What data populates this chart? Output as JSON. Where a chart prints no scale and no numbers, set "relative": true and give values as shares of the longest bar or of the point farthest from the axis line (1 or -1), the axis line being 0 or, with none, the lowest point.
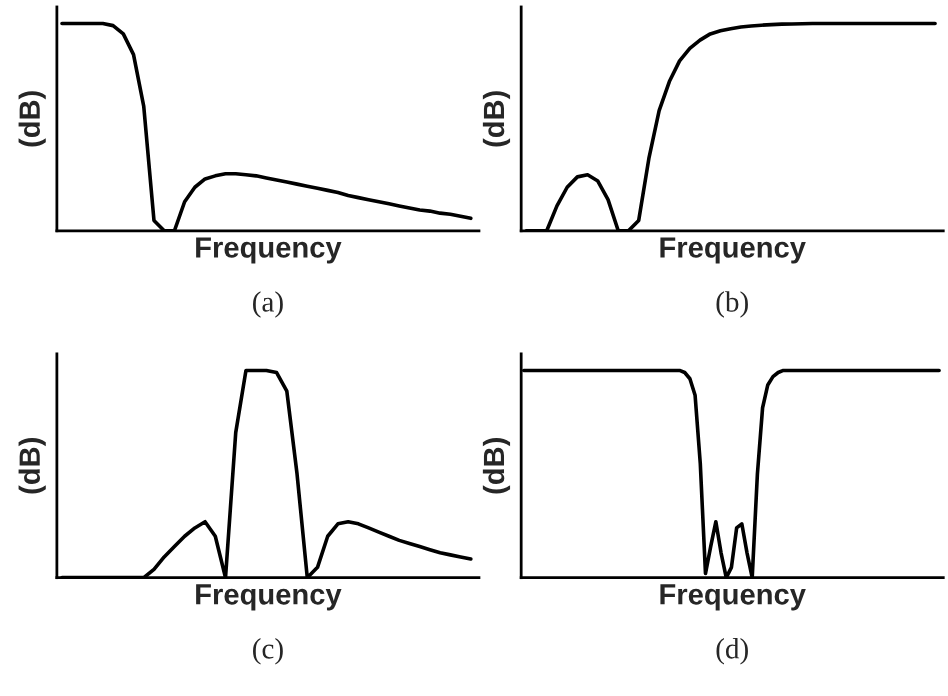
{
  "chart_data": [
    {
      "type": "line",
      "relative": true,
      "xlabel": "Frequency",
      "ylabel": "(dB)",
      "annotations": [
        "(a)"
      ],
      "categories": [
        null,
        null,
        null,
        null,
        null,
        null,
        null,
        null,
        null,
        null,
        null,
        null,
        null,
        null,
        null,
        null,
        null,
        null,
        null,
        null,
        null,
        null,
        null,
        null,
        null,
        null,
        null,
        null,
        null,
        null,
        null,
        null,
        null,
        null,
        null,
        null,
        null,
        null,
        null,
        null,
        null
      ],
      "series": [
        {
          "color": "#000000",
          "values": [
            1,
            1,
            1,
            1,
            1,
            0.99,
            0.95,
            0.85,
            0.6,
            0.05,
            0,
            0,
            0.14,
            0.21,
            0.25,
            0.265,
            0.275,
            0.275,
            0.27,
            0.265,
            0.255,
            0.245,
            0.235,
            0.225,
            0.215,
            0.205,
            0.195,
            0.185,
            0.17,
            0.16,
            0.15,
            0.14,
            0.13,
            0.12,
            0.11,
            0.1,
            0.095,
            0.085,
            0.08,
            0.07,
            0.06
          ]
        }
      ]
    },
    {
      "type": "line",
      "relative": true,
      "xlabel": "Frequency",
      "ylabel": "(dB)",
      "annotations": [
        "(b)"
      ],
      "categories": [
        null,
        null,
        null,
        null,
        null,
        null,
        null,
        null,
        null,
        null,
        null,
        null,
        null,
        null,
        null,
        null,
        null,
        null,
        null,
        null,
        null,
        null,
        null,
        null,
        null,
        null,
        null,
        null,
        null,
        null,
        null,
        null,
        null,
        null,
        null,
        null,
        null,
        null,
        null,
        null,
        null
      ],
      "series": [
        {
          "color": "#000000",
          "values": [
            0,
            0,
            0,
            0.12,
            0.21,
            0.26,
            0.27,
            0.24,
            0.15,
            0,
            0,
            0.05,
            0.35,
            0.58,
            0.72,
            0.82,
            0.88,
            0.92,
            0.95,
            0.965,
            0.975,
            0.983,
            0.988,
            0.992,
            0.995,
            0.997,
            0.998,
            0.999,
            1,
            1,
            1,
            1,
            1,
            1,
            1,
            1,
            1,
            1,
            1,
            1,
            1
          ]
        }
      ]
    },
    {
      "type": "line",
      "relative": true,
      "xlabel": "Frequency",
      "ylabel": "(dB)",
      "annotations": [
        "(c)"
      ],
      "categories": [
        null,
        null,
        null,
        null,
        null,
        null,
        null,
        null,
        null,
        null,
        null,
        null,
        null,
        null,
        null,
        null,
        null,
        null,
        null,
        null,
        null,
        null,
        null,
        null,
        null,
        null,
        null,
        null,
        null,
        null,
        null,
        null,
        null,
        null,
        null,
        null,
        null,
        null,
        null,
        null,
        null
      ],
      "series": [
        {
          "color": "#000000",
          "values": [
            0,
            0,
            0,
            0,
            0,
            0,
            0,
            0,
            0,
            0.04,
            0.1,
            0.15,
            0.2,
            0.24,
            0.27,
            0.2,
            0,
            0.7,
            1,
            1,
            1,
            0.99,
            0.9,
            0.5,
            0,
            0.05,
            0.2,
            0.26,
            0.27,
            0.26,
            0.24,
            0.22,
            0.2,
            0.18,
            0.165,
            0.15,
            0.135,
            0.12,
            0.11,
            0.1,
            0.09
          ]
        }
      ]
    },
    {
      "type": "line",
      "relative": true,
      "xlabel": "Frequency",
      "ylabel": "(dB)",
      "annotations": [
        "(d)"
      ],
      "categories": [
        null,
        null,
        null,
        null,
        null,
        null,
        null,
        null,
        null,
        null,
        null,
        null,
        null,
        null,
        null,
        null,
        null,
        null,
        null,
        null,
        null,
        null,
        null,
        null,
        null,
        null,
        null,
        null,
        null,
        null,
        null,
        null,
        null,
        null,
        null,
        null,
        null,
        null,
        null,
        null,
        null,
        null,
        null,
        null,
        null,
        null,
        null,
        null,
        null,
        null,
        null,
        null,
        null,
        null,
        null,
        null,
        null,
        null,
        null,
        null,
        null,
        null,
        null,
        null,
        null,
        null,
        null,
        null,
        null,
        null,
        null,
        null,
        null,
        null,
        null,
        null,
        null,
        null,
        null,
        null,
        null
      ],
      "series": [
        {
          "color": "#000000",
          "values": [
            1,
            1,
            1,
            1,
            1,
            1,
            1,
            1,
            1,
            1,
            1,
            1,
            1,
            1,
            1,
            1,
            1,
            1,
            1,
            1,
            1,
            1,
            1,
            1,
            1,
            1,
            1,
            1,
            1,
            1,
            1,
            0.99,
            0.96,
            0.88,
            0.55,
            0.02,
            0.15,
            0.27,
            0.12,
            0,
            0.05,
            0.24,
            0.26,
            0.12,
            0,
            0.5,
            0.82,
            0.93,
            0.97,
            0.99,
            1,
            1,
            1,
            1,
            1,
            1,
            1,
            1,
            1,
            1,
            1,
            1,
            1,
            1,
            1,
            1,
            1,
            1,
            1,
            1,
            1,
            1,
            1,
            1,
            1,
            1,
            1,
            1,
            1,
            1,
            1
          ]
        }
      ]
    }
  ]
}
